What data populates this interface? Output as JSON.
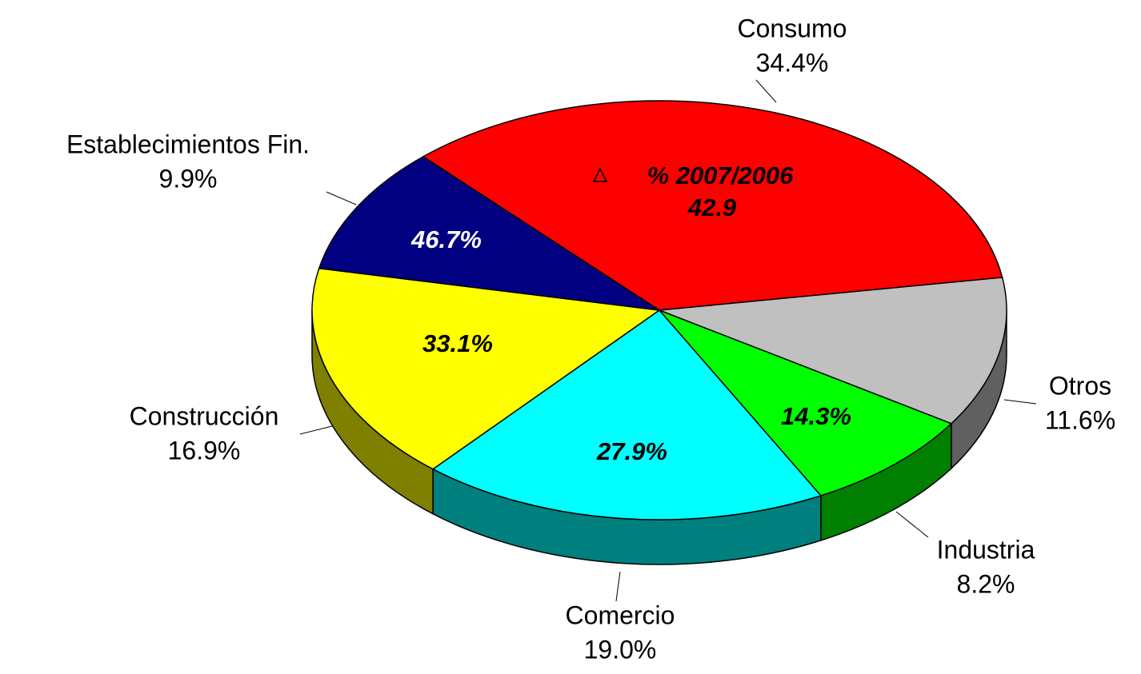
{
  "chart_data": {
    "type": "pie3d",
    "categories": [
      "Consumo",
      "Otros",
      "Industria",
      "Comercio",
      "Construcción",
      "Establecimientos Fin."
    ],
    "values": [
      34.4,
      11.6,
      8.2,
      19.0,
      16.9,
      9.9
    ],
    "value_labels": [
      "34.4%",
      "11.6%",
      "8.2%",
      "19.0%",
      "16.9%",
      "9.9%"
    ],
    "colors": [
      "#ff0000",
      "#c0c0c0",
      "#00ff00",
      "#00ffff",
      "#ffff00",
      "#000080"
    ],
    "annotation": "% 2007/2006",
    "growth": [
      42.9,
      null,
      14.3,
      27.9,
      33.1,
      46.7
    ],
    "growth_labels": [
      "42.9",
      null,
      "14.3%",
      "27.9%",
      "33.1%",
      "46.7%"
    ]
  }
}
